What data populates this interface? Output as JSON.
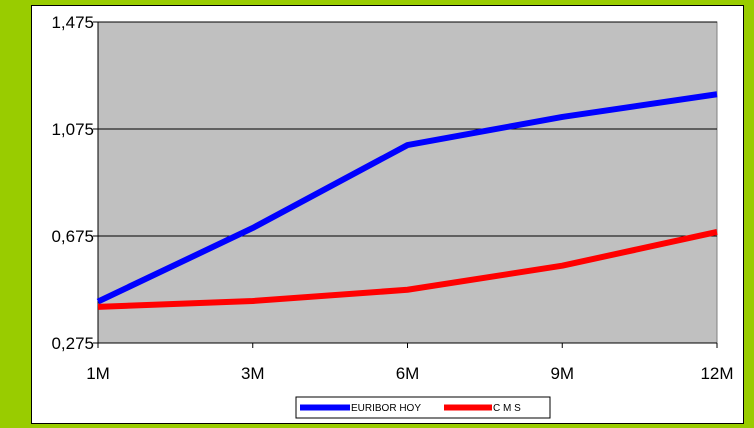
{
  "chart_data": {
    "type": "line",
    "categories": [
      "1M",
      "3M",
      "6M",
      "9M",
      "12M"
    ],
    "series": [
      {
        "name": "EURIBOR HOY",
        "color": "#0000ff",
        "values": [
          0.43,
          0.705,
          1.015,
          1.12,
          1.205
        ]
      },
      {
        "name": "C M S",
        "color": "#ff0000",
        "values": [
          0.41,
          0.432,
          0.474,
          0.564,
          0.69
        ]
      }
    ],
    "yticks": [
      "1,475",
      "1,075",
      "0,675",
      "0,275"
    ],
    "ytick_values": [
      1.475,
      1.075,
      0.675,
      0.275
    ],
    "ylim": [
      0.275,
      1.475
    ],
    "grid": true,
    "plot_background": "#c0c0c0",
    "legend_position": "bottom"
  }
}
